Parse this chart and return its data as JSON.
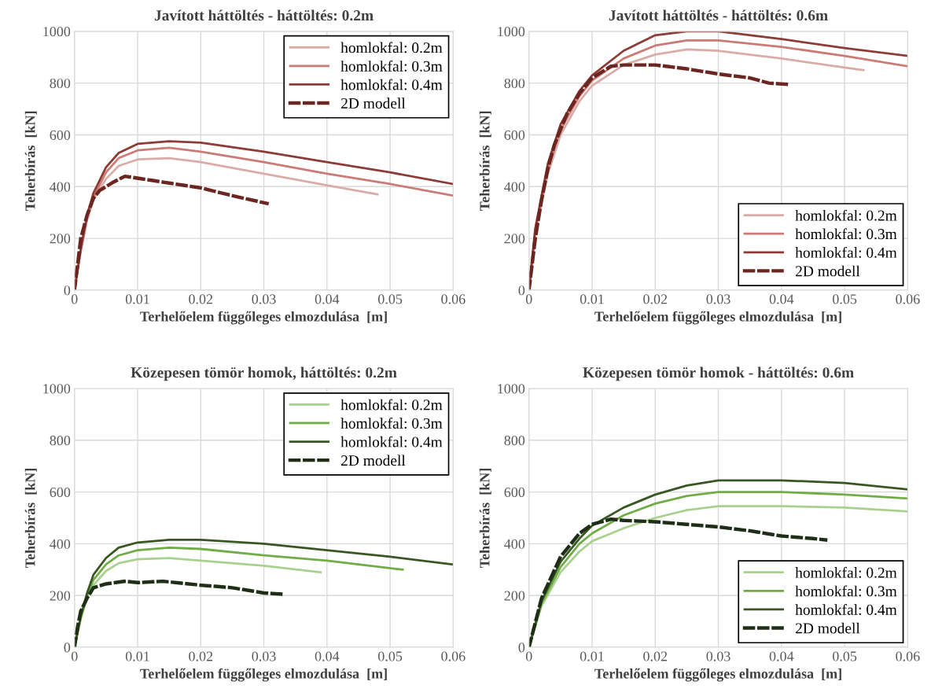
{
  "chart_data": [
    {
      "type": "line",
      "title": "Javított háttöltés - háttöltés: 0.2m",
      "xlabel": "Terhelőelem függőleges elmozdulása  [m]",
      "ylabel": "Teherbírás  [kN]",
      "xlim": [
        0,
        0.06
      ],
      "ylim": [
        0,
        1000
      ],
      "xticks": [
        0,
        0.01,
        0.02,
        0.03,
        0.04,
        0.05,
        0.06
      ],
      "yticks": [
        0,
        200,
        400,
        600,
        800,
        1000
      ],
      "grid": true,
      "legend": "top right",
      "series": [
        {
          "name": "homlokfal: 0.2m",
          "color": "#d9aca8",
          "line_style": "solid",
          "x": [
            0,
            0.001,
            0.002,
            0.003,
            0.005,
            0.007,
            0.01,
            0.015,
            0.02,
            0.03,
            0.04,
            0.048
          ],
          "values": [
            0,
            150,
            270,
            350,
            430,
            480,
            505,
            510,
            495,
            450,
            405,
            370
          ]
        },
        {
          "name": "homlokfal: 0.3m",
          "color": "#cc7a74",
          "line_style": "solid",
          "x": [
            0,
            0.001,
            0.002,
            0.003,
            0.005,
            0.007,
            0.01,
            0.015,
            0.02,
            0.03,
            0.04,
            0.05,
            0.06
          ],
          "values": [
            0,
            155,
            280,
            360,
            455,
            510,
            540,
            550,
            535,
            495,
            450,
            410,
            365
          ]
        },
        {
          "name": "homlokfal: 0.4m",
          "color": "#8e3b36",
          "line_style": "solid",
          "x": [
            0,
            0.001,
            0.002,
            0.003,
            0.005,
            0.007,
            0.01,
            0.015,
            0.02,
            0.03,
            0.04,
            0.05,
            0.06
          ],
          "values": [
            0,
            160,
            290,
            375,
            475,
            530,
            565,
            575,
            570,
            535,
            495,
            455,
            410
          ]
        },
        {
          "name": "2D modell",
          "color": "#6b2622",
          "line_style": "dashed",
          "x": [
            0,
            0.0005,
            0.001,
            0.002,
            0.003,
            0.004,
            0.006,
            0.008,
            0.012,
            0.016,
            0.02,
            0.025,
            0.0305
          ],
          "values": [
            0,
            100,
            200,
            290,
            355,
            385,
            415,
            440,
            425,
            410,
            395,
            365,
            335
          ]
        }
      ]
    },
    {
      "type": "line",
      "title": "Javított háttöltés - háttöltés: 0.6m",
      "xlabel": "Terhelőelem függőleges elmozdulása  [m]",
      "ylabel": "Teherbírás  [kN]",
      "xlim": [
        0,
        0.06
      ],
      "ylim": [
        0,
        1000
      ],
      "xticks": [
        0,
        0.01,
        0.02,
        0.03,
        0.04,
        0.05,
        0.06
      ],
      "yticks": [
        0,
        200,
        400,
        600,
        800,
        1000
      ],
      "grid": true,
      "legend": "bottom right",
      "series": [
        {
          "name": "homlokfal: 0.2m",
          "color": "#d9aca8",
          "line_style": "solid",
          "x": [
            0,
            0.001,
            0.003,
            0.005,
            0.008,
            0.01,
            0.015,
            0.02,
            0.025,
            0.03,
            0.04,
            0.05,
            0.053
          ],
          "values": [
            0,
            220,
            450,
            600,
            730,
            790,
            870,
            910,
            930,
            925,
            895,
            860,
            850
          ]
        },
        {
          "name": "homlokfal: 0.3m",
          "color": "#cc7a74",
          "line_style": "solid",
          "x": [
            0,
            0.001,
            0.003,
            0.005,
            0.008,
            0.01,
            0.015,
            0.02,
            0.025,
            0.03,
            0.04,
            0.05,
            0.06
          ],
          "values": [
            0,
            230,
            470,
            620,
            750,
            810,
            895,
            945,
            965,
            965,
            940,
            905,
            865
          ]
        },
        {
          "name": "homlokfal: 0.4m",
          "color": "#8e3b36",
          "line_style": "solid",
          "x": [
            0,
            0.001,
            0.003,
            0.005,
            0.008,
            0.01,
            0.015,
            0.02,
            0.025,
            0.03,
            0.04,
            0.05,
            0.06
          ],
          "values": [
            0,
            240,
            490,
            640,
            770,
            830,
            925,
            985,
            1000,
            1000,
            970,
            935,
            905
          ]
        },
        {
          "name": "2D modell",
          "color": "#6b2622",
          "line_style": "dashed",
          "x": [
            0,
            0.0005,
            0.001,
            0.002,
            0.003,
            0.004,
            0.006,
            0.008,
            0.01,
            0.013,
            0.015,
            0.02,
            0.025,
            0.03,
            0.035,
            0.038,
            0.041
          ],
          "values": [
            0,
            100,
            200,
            350,
            470,
            560,
            680,
            760,
            820,
            865,
            870,
            870,
            855,
            835,
            820,
            800,
            795
          ]
        }
      ]
    },
    {
      "type": "line",
      "title": "Közepesen tömör homok, háttöltés: 0.2m",
      "xlabel": "Terhelőelem függőleges elmozdulása  [m]",
      "ylabel": "Teherbírás  [kN]",
      "xlim": [
        0,
        0.06
      ],
      "ylim": [
        0,
        1000
      ],
      "xticks": [
        0,
        0.01,
        0.02,
        0.03,
        0.04,
        0.05,
        0.06
      ],
      "yticks": [
        0,
        200,
        400,
        600,
        800,
        1000
      ],
      "grid": true,
      "legend": "top right",
      "series": [
        {
          "name": "homlokfal: 0.2m",
          "color": "#a9d18e",
          "line_style": "solid",
          "x": [
            0,
            0.001,
            0.002,
            0.003,
            0.005,
            0.007,
            0.01,
            0.015,
            0.02,
            0.03,
            0.039
          ],
          "values": [
            0,
            110,
            190,
            240,
            295,
            325,
            340,
            345,
            335,
            315,
            290
          ]
        },
        {
          "name": "homlokfal: 0.3m",
          "color": "#70ad47",
          "line_style": "solid",
          "x": [
            0,
            0.001,
            0.002,
            0.003,
            0.005,
            0.007,
            0.01,
            0.015,
            0.02,
            0.03,
            0.04,
            0.052
          ],
          "values": [
            0,
            115,
            200,
            260,
            320,
            355,
            375,
            385,
            380,
            355,
            335,
            300
          ]
        },
        {
          "name": "homlokfal: 0.4m",
          "color": "#385723",
          "line_style": "solid",
          "x": [
            0,
            0.001,
            0.002,
            0.003,
            0.005,
            0.007,
            0.01,
            0.015,
            0.02,
            0.03,
            0.04,
            0.05,
            0.06
          ],
          "values": [
            0,
            120,
            210,
            280,
            345,
            385,
            405,
            415,
            415,
            400,
            375,
            350,
            320
          ]
        },
        {
          "name": "2D modell",
          "color": "#1f2e17",
          "line_style": "dashed",
          "x": [
            0,
            0.0005,
            0.001,
            0.002,
            0.003,
            0.005,
            0.008,
            0.01,
            0.014,
            0.02,
            0.025,
            0.03,
            0.033
          ],
          "values": [
            0,
            80,
            140,
            190,
            230,
            245,
            255,
            250,
            255,
            240,
            230,
            210,
            205
          ]
        }
      ]
    },
    {
      "type": "line",
      "title": "Közepesen tömör homok - háttöltés: 0.6m",
      "xlabel": "Terhelőelem függőleges elmozdulása  [m]",
      "ylabel": "Teherbírás  [kN]",
      "xlim": [
        0,
        0.06
      ],
      "ylim": [
        0,
        1000
      ],
      "xticks": [
        0,
        0.01,
        0.02,
        0.03,
        0.04,
        0.05,
        0.06
      ],
      "yticks": [
        0,
        200,
        400,
        600,
        800,
        1000
      ],
      "grid": true,
      "legend": "bottom right",
      "series": [
        {
          "name": "homlokfal: 0.2m",
          "color": "#a9d18e",
          "line_style": "solid",
          "x": [
            0,
            0.002,
            0.005,
            0.008,
            0.01,
            0.015,
            0.02,
            0.025,
            0.03,
            0.04,
            0.05,
            0.06
          ],
          "values": [
            0,
            160,
            290,
            370,
            410,
            460,
            500,
            530,
            545,
            545,
            540,
            525
          ]
        },
        {
          "name": "homlokfal: 0.3m",
          "color": "#70ad47",
          "line_style": "solid",
          "x": [
            0,
            0.002,
            0.005,
            0.008,
            0.01,
            0.015,
            0.02,
            0.025,
            0.03,
            0.04,
            0.05,
            0.06
          ],
          "values": [
            0,
            170,
            310,
            400,
            440,
            510,
            555,
            585,
            600,
            600,
            590,
            575
          ]
        },
        {
          "name": "homlokfal: 0.4m",
          "color": "#385723",
          "line_style": "solid",
          "x": [
            0,
            0.002,
            0.005,
            0.008,
            0.01,
            0.015,
            0.02,
            0.025,
            0.03,
            0.04,
            0.05,
            0.06
          ],
          "values": [
            0,
            180,
            330,
            420,
            470,
            540,
            590,
            625,
            645,
            645,
            635,
            610
          ]
        },
        {
          "name": "2D modell",
          "color": "#1f2e17",
          "line_style": "dashed",
          "x": [
            0,
            0.002,
            0.005,
            0.008,
            0.01,
            0.013,
            0.015,
            0.02,
            0.025,
            0.03,
            0.035,
            0.04,
            0.045,
            0.047
          ],
          "values": [
            0,
            190,
            350,
            440,
            475,
            495,
            490,
            485,
            475,
            465,
            450,
            430,
            420,
            415
          ]
        }
      ]
    }
  ]
}
